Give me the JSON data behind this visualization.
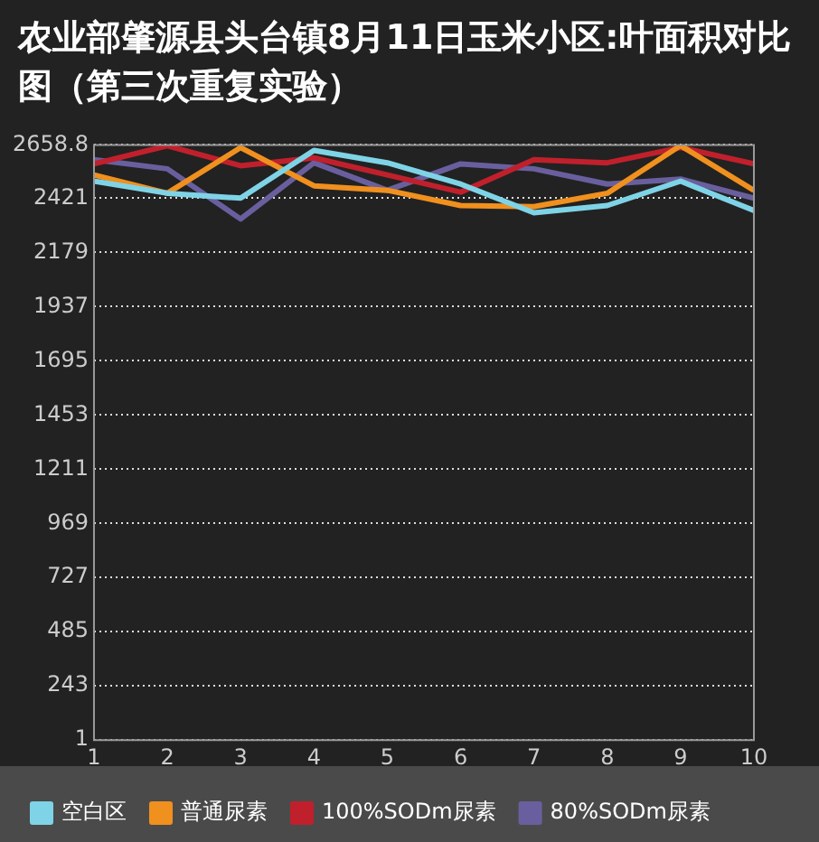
{
  "chart_data": {
    "type": "line",
    "title": "农业部肇源县头台镇8月11日玉米小区:叶面积对比图（第三次重复实验）",
    "x": [
      1,
      2,
      3,
      4,
      5,
      6,
      7,
      8,
      9,
      10
    ],
    "xlim": [
      1,
      10
    ],
    "xticks": [
      1,
      2,
      3,
      4,
      5,
      6,
      7,
      8,
      9,
      10
    ],
    "ylim": [
      1,
      2658.8
    ],
    "yticks": [
      1,
      243,
      485,
      727,
      969,
      1211,
      1453,
      1695,
      1937,
      2179,
      2421,
      2658.8
    ],
    "series": [
      {
        "name": "空白区",
        "color": "#7fd3e6",
        "values": [
          2497,
          2443,
          2421,
          2634,
          2579,
          2484,
          2356,
          2388,
          2497,
          2366
        ]
      },
      {
        "name": "普通尿素",
        "color": "#f0901e",
        "values": [
          2525,
          2443,
          2647,
          2476,
          2456,
          2388,
          2383,
          2443,
          2656,
          2456
        ]
      },
      {
        "name": "100%SODm尿素",
        "color": "#c0202c",
        "values": [
          2574,
          2655,
          2566,
          2601,
          2525,
          2448,
          2593,
          2579,
          2647,
          2574
        ]
      },
      {
        "name": "80%SODm尿素",
        "color": "#6a5f9e",
        "values": [
          2593,
          2552,
          2328,
          2579,
          2456,
          2574,
          2552,
          2484,
          2506,
          2421
        ]
      }
    ],
    "grid": "y",
    "legend": "bottom",
    "marker": "none",
    "line_style": "solid"
  }
}
